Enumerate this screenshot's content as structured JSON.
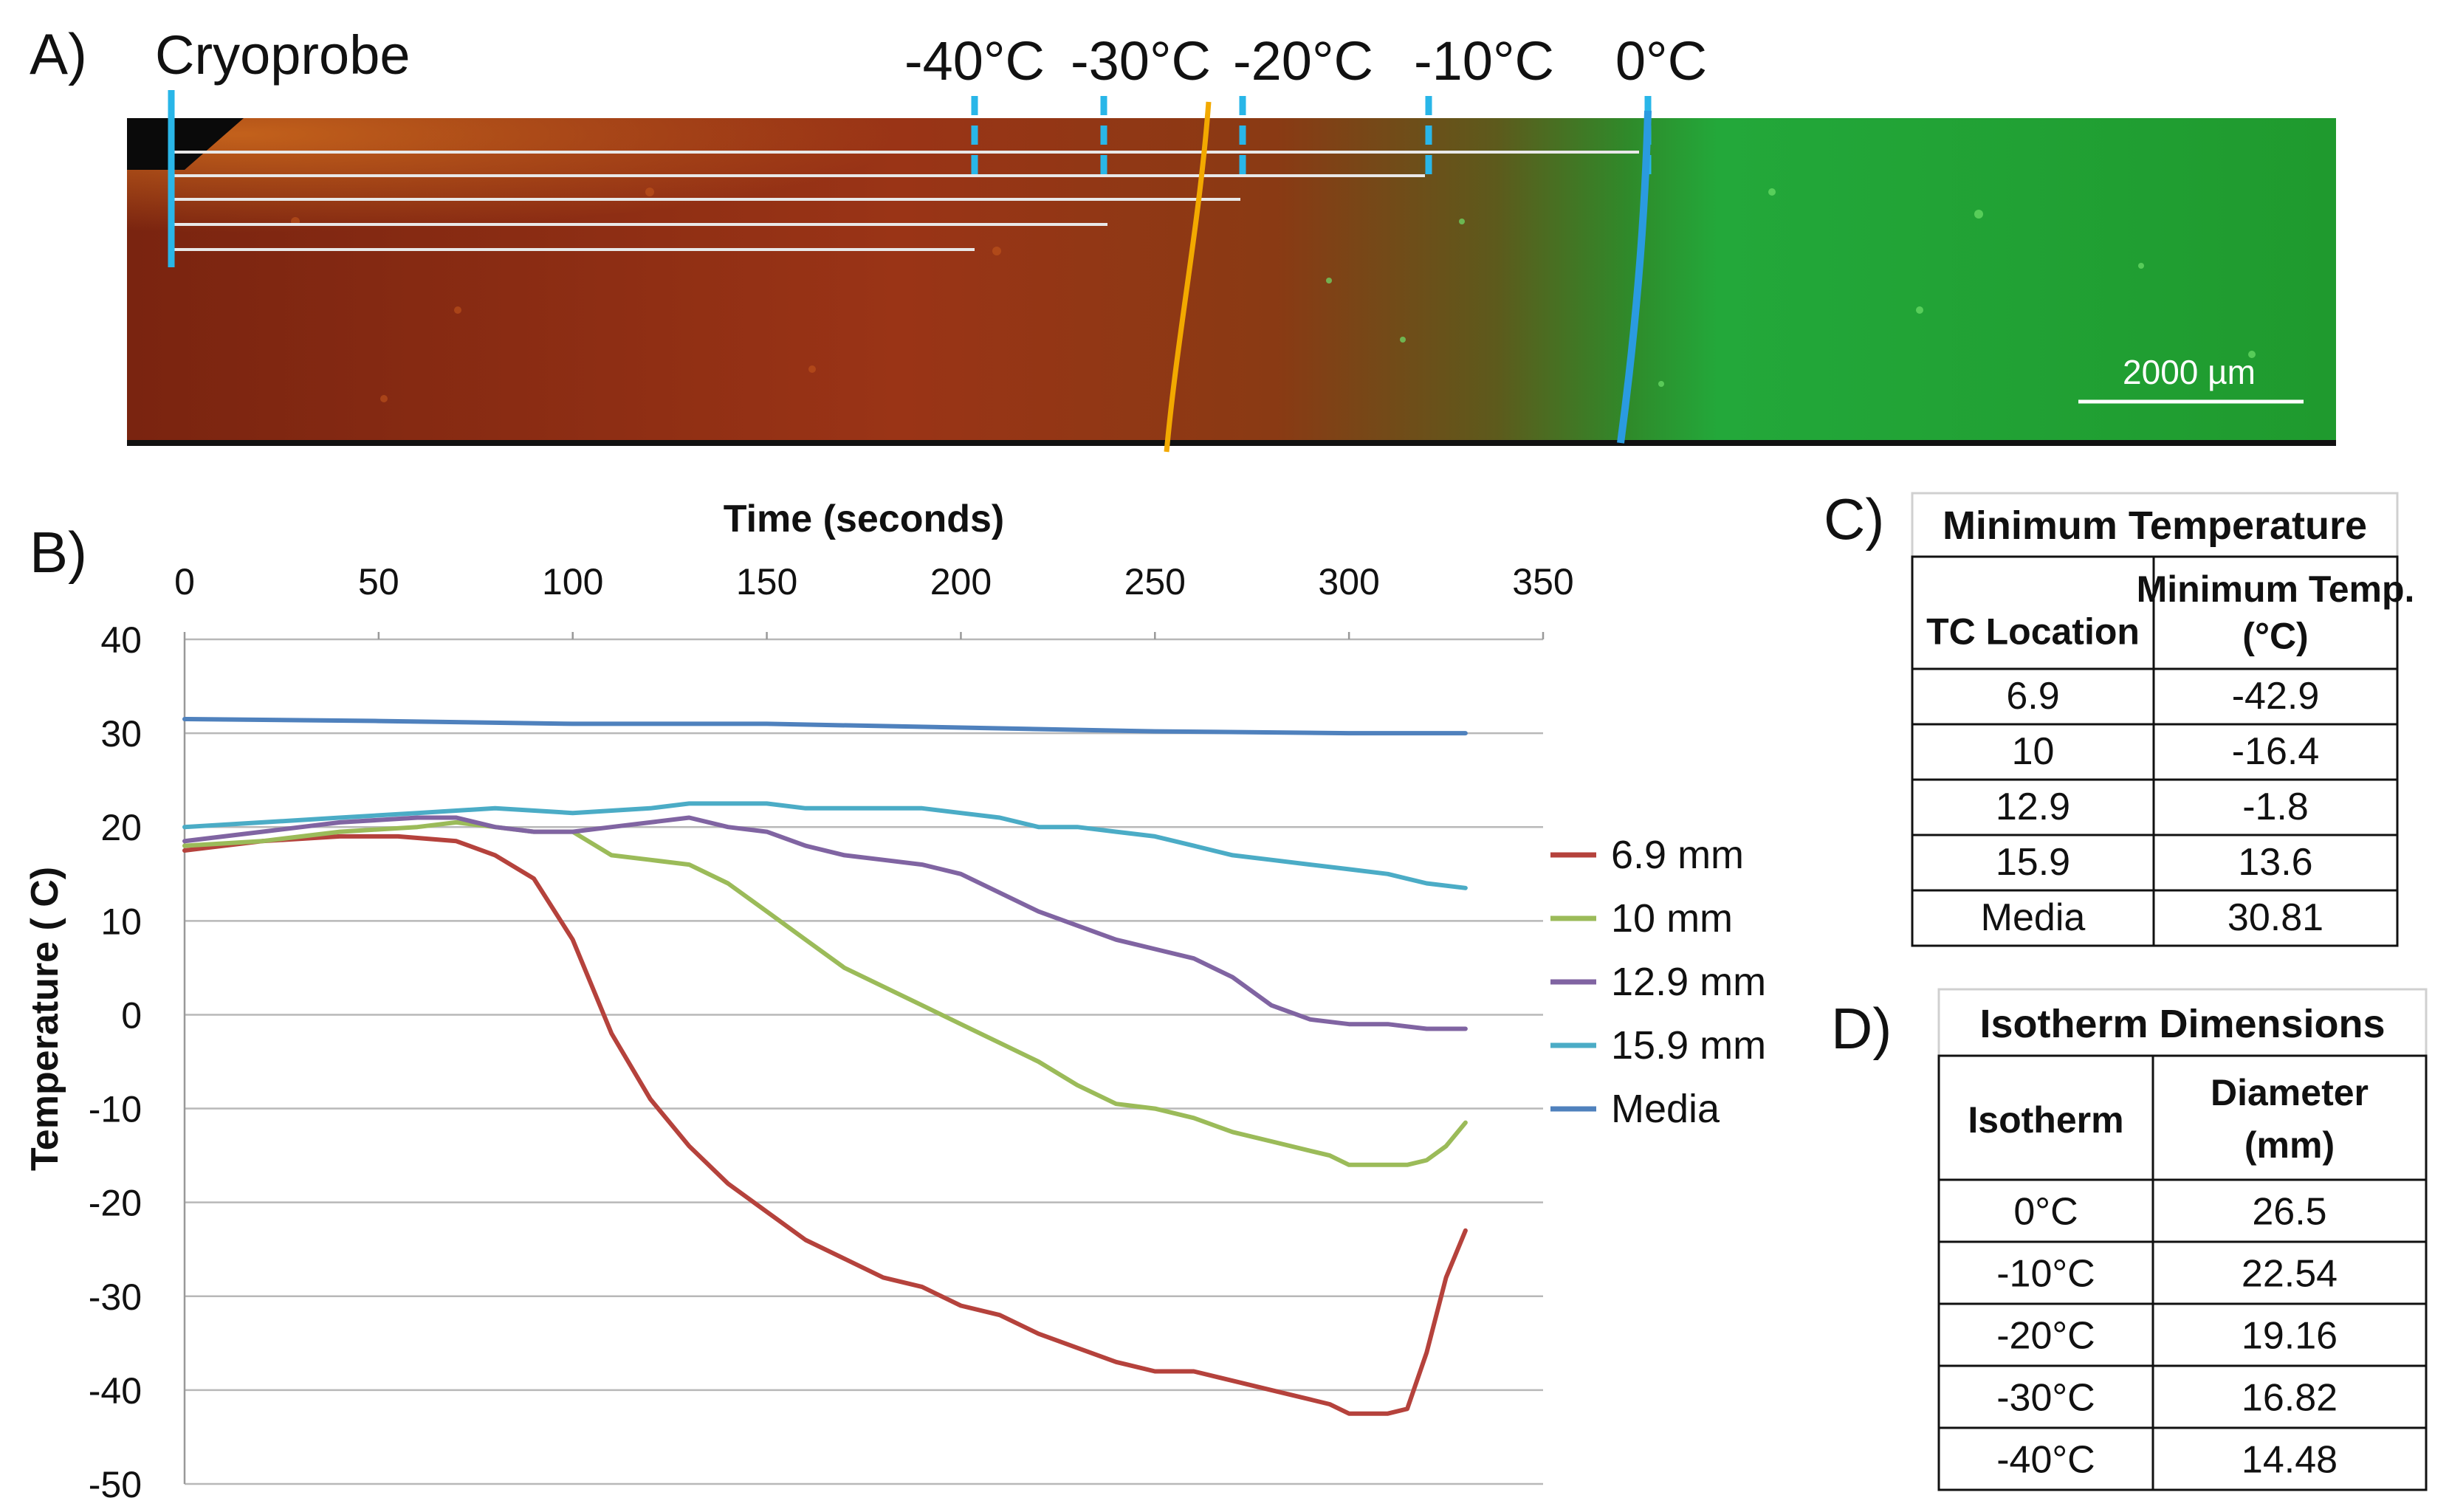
{
  "panel_a": {
    "panel_label": "A)",
    "probe_label": "Cryoprobe",
    "isotherm_labels": [
      "-40°C",
      "-30°C",
      "-20°C",
      "-10°C",
      "0°C"
    ],
    "scale_bar_label": "2000 µm",
    "colors": {
      "tissue_dead": "#8a2a12",
      "tissue_live": "#1f9e2e",
      "marker": "#29b6e8",
      "orange_line": "#f2a900"
    }
  },
  "panel_b": {
    "panel_label": "B)",
    "xlabel": "Time (seconds)",
    "ylabel": "Temperature ( C)"
  },
  "chart_data": {
    "type": "line",
    "title": "",
    "xlabel": "Time (seconds)",
    "ylabel": "Temperature ( C)",
    "xlim": [
      0,
      350
    ],
    "ylim": [
      -50,
      40
    ],
    "xticks": [
      0,
      50,
      100,
      150,
      200,
      250,
      300,
      350
    ],
    "yticks": [
      40,
      30,
      20,
      10,
      0,
      -10,
      -20,
      -30,
      -40,
      -50
    ],
    "x_axis_position": "top",
    "grid": "horizontal",
    "legend_position": "right",
    "series": [
      {
        "name": "6.9 mm",
        "color": "#b5423c",
        "x": [
          0,
          20,
          40,
          55,
          70,
          80,
          90,
          100,
          110,
          120,
          130,
          140,
          150,
          160,
          170,
          180,
          190,
          200,
          210,
          220,
          230,
          240,
          250,
          260,
          270,
          280,
          290,
          295,
          300,
          305,
          310,
          315,
          320,
          325,
          330
        ],
        "y": [
          17.5,
          18.5,
          19,
          19,
          18.5,
          17,
          14.5,
          8,
          -2,
          -9,
          -14,
          -18,
          -21,
          -24,
          -26,
          -28,
          -29,
          -31,
          -32,
          -34,
          -35.5,
          -37,
          -38,
          -38,
          -39,
          -40,
          -41,
          -41.5,
          -42.5,
          -42.5,
          -42.5,
          -42,
          -36,
          -28,
          -23
        ]
      },
      {
        "name": "10 mm",
        "color": "#9bbb59",
        "x": [
          0,
          20,
          40,
          60,
          70,
          80,
          90,
          100,
          110,
          120,
          130,
          140,
          150,
          160,
          170,
          180,
          190,
          200,
          210,
          220,
          230,
          240,
          250,
          260,
          270,
          280,
          290,
          295,
          300,
          310,
          315,
          320,
          325,
          330
        ],
        "y": [
          18,
          18.5,
          19.5,
          20,
          20.5,
          20,
          19.5,
          19.5,
          17,
          16.5,
          16,
          14,
          11,
          8,
          5,
          3,
          1,
          -1,
          -3,
          -5,
          -7.5,
          -9.5,
          -10,
          -11,
          -12.5,
          -13.5,
          -14.5,
          -15,
          -16,
          -16,
          -16,
          -15.5,
          -14,
          -11.5
        ]
      },
      {
        "name": "12.9 mm",
        "color": "#8064a2",
        "x": [
          0,
          20,
          40,
          60,
          70,
          80,
          90,
          100,
          110,
          120,
          130,
          140,
          150,
          160,
          170,
          180,
          190,
          200,
          210,
          220,
          230,
          240,
          250,
          260,
          270,
          280,
          290,
          300,
          310,
          320,
          330
        ],
        "y": [
          18.5,
          19.5,
          20.5,
          21,
          21,
          20,
          19.5,
          19.5,
          20,
          20.5,
          21,
          20,
          19.5,
          18,
          17,
          16.5,
          16,
          15,
          13,
          11,
          9.5,
          8,
          7,
          6,
          4,
          1,
          -0.5,
          -1,
          -1,
          -1.5,
          -1.5
        ]
      },
      {
        "name": "15.9 mm",
        "color": "#4bacc6",
        "x": [
          0,
          20,
          40,
          60,
          80,
          100,
          120,
          130,
          140,
          150,
          160,
          170,
          180,
          190,
          200,
          210,
          220,
          230,
          240,
          250,
          260,
          270,
          280,
          290,
          300,
          310,
          320,
          330
        ],
        "y": [
          20,
          20.5,
          21,
          21.5,
          22,
          21.5,
          22,
          22.5,
          22.5,
          22.5,
          22,
          22,
          22,
          22,
          21.5,
          21,
          20,
          20,
          19.5,
          19,
          18,
          17,
          16.5,
          16,
          15.5,
          15,
          14,
          13.5
        ]
      },
      {
        "name": "Media",
        "color": "#4f81bd",
        "x": [
          0,
          50,
          100,
          150,
          200,
          250,
          300,
          330
        ],
        "y": [
          31.5,
          31.3,
          31,
          31,
          30.6,
          30.2,
          30,
          30
        ]
      }
    ]
  },
  "panel_c": {
    "panel_label": "C)",
    "title": "Minimum Temperature",
    "headers": [
      "TC Location",
      "Minimum Temp. (°C)"
    ],
    "rows": [
      [
        "6.9",
        "-42.9"
      ],
      [
        "10",
        "-16.4"
      ],
      [
        "12.9",
        "-1.8"
      ],
      [
        "15.9",
        "13.6"
      ],
      [
        "Media",
        "30.81"
      ]
    ]
  },
  "panel_d": {
    "panel_label": "D)",
    "title": "Isotherm Dimensions",
    "headers": [
      "Isotherm",
      "Diameter (mm)"
    ],
    "rows": [
      [
        "0°C",
        "26.5"
      ],
      [
        "-10°C",
        "22.54"
      ],
      [
        "-20°C",
        "19.16"
      ],
      [
        "-30°C",
        "16.82"
      ],
      [
        "-40°C",
        "14.48"
      ]
    ]
  }
}
